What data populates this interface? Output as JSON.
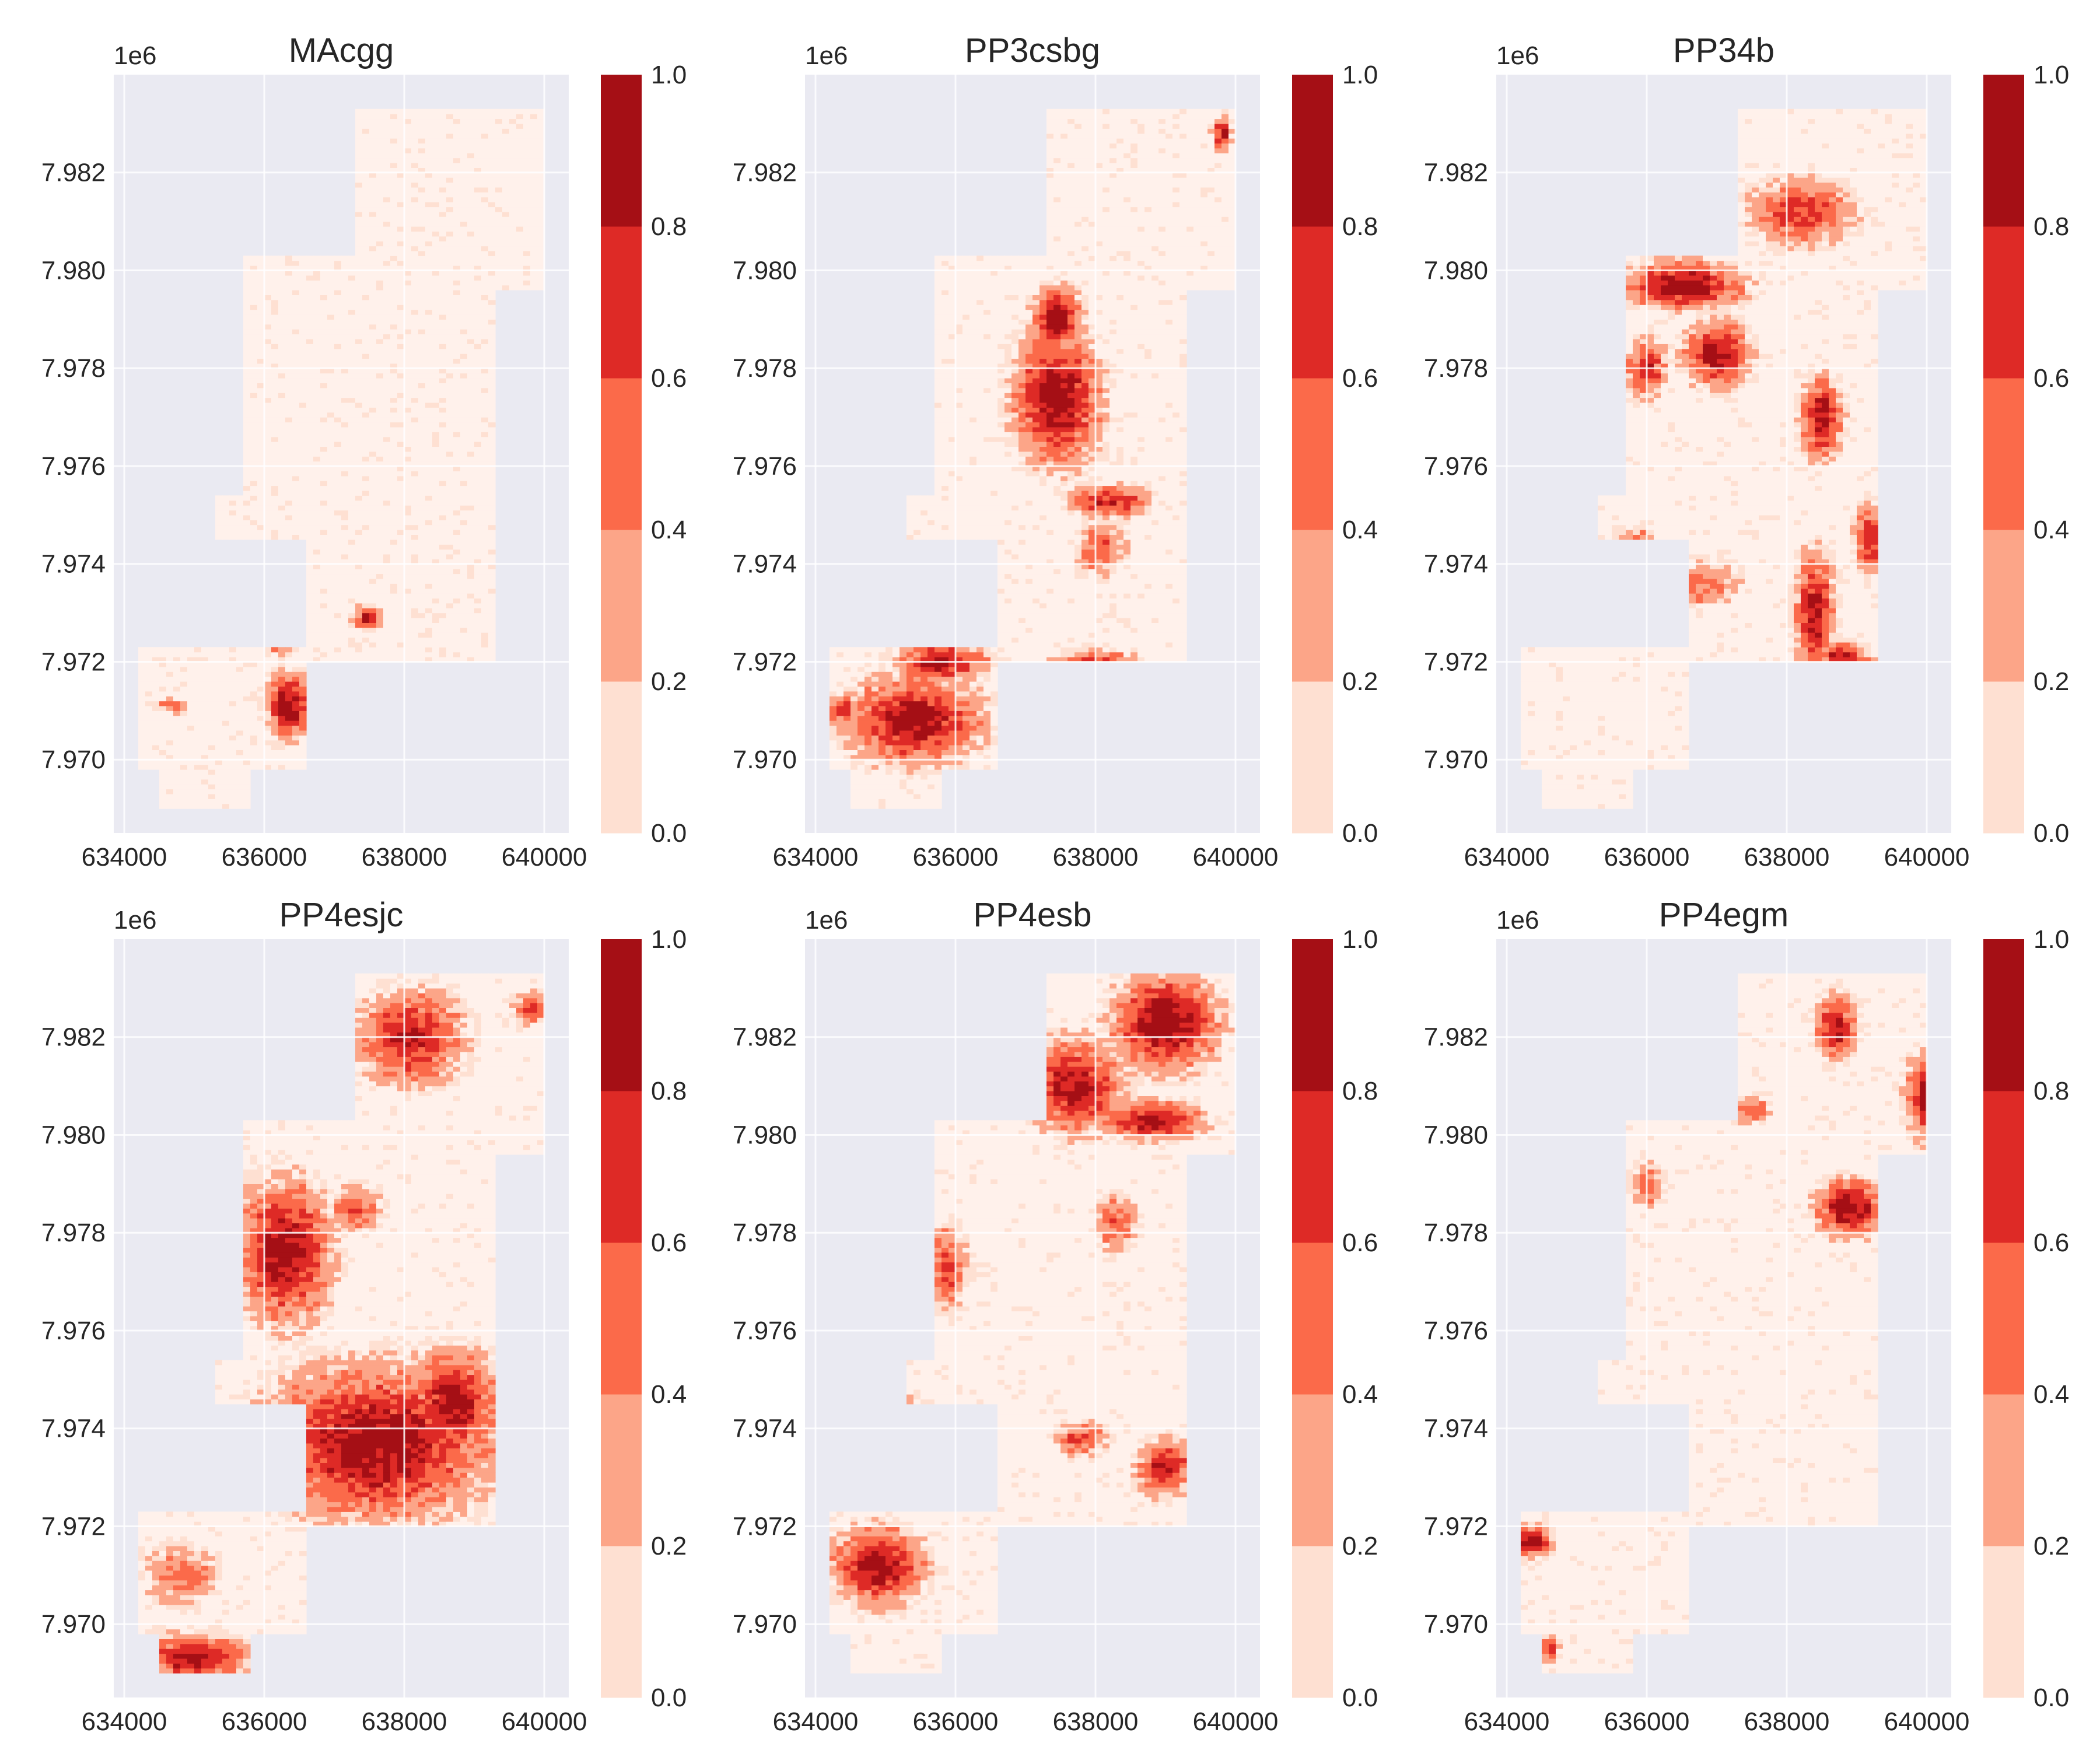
{
  "figure": {
    "background": "#ffffff",
    "axes_background": "#EAEAF2",
    "grid_color": "#ffffff",
    "outside_color": "#EAEAF2"
  },
  "colormap": {
    "name": "Reds",
    "boundaries": [
      0.0,
      0.2,
      0.4,
      0.6,
      0.8,
      1.0
    ],
    "colors": [
      "#FEE0D2",
      "#FCA588",
      "#FB6A4A",
      "#DE2A26",
      "#A50F15"
    ],
    "low_fill": "#FFF1EB",
    "tick_labels": [
      "0.0",
      "0.2",
      "0.4",
      "0.6",
      "0.8",
      "1.0"
    ]
  },
  "chart_data": [
    {
      "type": "heatmap",
      "title": "MAcgg",
      "offset_label": "1e6",
      "xlim": [
        633850,
        640350
      ],
      "ylim": [
        7968500,
        7984000
      ],
      "xticks": [
        634000,
        636000,
        638000,
        640000
      ],
      "xtick_labels": [
        "634000",
        "636000",
        "638000",
        "640000"
      ],
      "yticks": [
        7970000,
        7972000,
        7974000,
        7976000,
        7978000,
        7980000,
        7982000
      ],
      "ytick_labels": [
        "7.970",
        "7.972",
        "7.974",
        "7.976",
        "7.978",
        "7.980",
        "7.982"
      ],
      "colorbar": {
        "range": [
          0.0,
          1.0
        ]
      },
      "hotspots": [
        {
          "x": 636350,
          "y": 7971100,
          "rx": 330,
          "ry": 700,
          "level": 0.95
        },
        {
          "x": 637480,
          "y": 7972900,
          "rx": 200,
          "ry": 260,
          "level": 0.9
        },
        {
          "x": 636900,
          "y": 7971750,
          "rx": 150,
          "ry": 200,
          "level": 0.7
        },
        {
          "x": 634700,
          "y": 7971100,
          "rx": 250,
          "ry": 150,
          "level": 0.6
        },
        {
          "x": 636250,
          "y": 7972300,
          "rx": 250,
          "ry": 200,
          "level": 0.35
        }
      ]
    },
    {
      "type": "heatmap",
      "title": "PP3csbg",
      "offset_label": "1e6",
      "xlim": [
        633850,
        640350
      ],
      "ylim": [
        7968500,
        7984000
      ],
      "xticks": [
        634000,
        636000,
        638000,
        640000
      ],
      "xtick_labels": [
        "634000",
        "636000",
        "638000",
        "640000"
      ],
      "yticks": [
        7970000,
        7972000,
        7974000,
        7976000,
        7978000,
        7980000,
        7982000
      ],
      "ytick_labels": [
        "7.970",
        "7.972",
        "7.974",
        "7.976",
        "7.978",
        "7.980",
        "7.982"
      ],
      "colorbar": {
        "range": [
          0.0,
          1.0
        ]
      },
      "hotspots": [
        {
          "x": 637450,
          "y": 7977400,
          "rx": 650,
          "ry": 1400,
          "level": 0.98
        },
        {
          "x": 637450,
          "y": 7979000,
          "rx": 350,
          "ry": 700,
          "level": 0.95
        },
        {
          "x": 635400,
          "y": 7970800,
          "rx": 1000,
          "ry": 900,
          "level": 0.95
        },
        {
          "x": 635800,
          "y": 7972000,
          "rx": 700,
          "ry": 450,
          "level": 0.85
        },
        {
          "x": 638000,
          "y": 7971900,
          "rx": 600,
          "ry": 350,
          "level": 0.9
        },
        {
          "x": 638200,
          "y": 7975300,
          "rx": 600,
          "ry": 350,
          "level": 0.75
        },
        {
          "x": 638100,
          "y": 7974300,
          "rx": 400,
          "ry": 600,
          "level": 0.5
        },
        {
          "x": 639800,
          "y": 7982800,
          "rx": 150,
          "ry": 350,
          "level": 0.85
        },
        {
          "x": 634400,
          "y": 7971000,
          "rx": 250,
          "ry": 400,
          "level": 0.6
        }
      ]
    },
    {
      "type": "heatmap",
      "title": "PP34b",
      "offset_label": "1e6",
      "xlim": [
        633850,
        640350
      ],
      "ylim": [
        7968500,
        7984000
      ],
      "xticks": [
        634000,
        636000,
        638000,
        640000
      ],
      "xtick_labels": [
        "634000",
        "636000",
        "638000",
        "640000"
      ],
      "yticks": [
        7970000,
        7972000,
        7974000,
        7976000,
        7978000,
        7980000,
        7982000
      ],
      "ytick_labels": [
        "7.970",
        "7.972",
        "7.974",
        "7.976",
        "7.978",
        "7.980",
        "7.982"
      ],
      "colorbar": {
        "range": [
          0.0,
          1.0
        ]
      },
      "hotspots": [
        {
          "x": 636500,
          "y": 7979700,
          "rx": 900,
          "ry": 500,
          "level": 0.98
        },
        {
          "x": 637000,
          "y": 7978300,
          "rx": 500,
          "ry": 700,
          "level": 0.9
        },
        {
          "x": 636000,
          "y": 7978000,
          "rx": 300,
          "ry": 600,
          "level": 0.75
        },
        {
          "x": 638500,
          "y": 7977000,
          "rx": 300,
          "ry": 900,
          "level": 0.9
        },
        {
          "x": 638200,
          "y": 7981200,
          "rx": 800,
          "ry": 700,
          "level": 0.7
        },
        {
          "x": 638400,
          "y": 7973000,
          "rx": 300,
          "ry": 1300,
          "level": 0.85
        },
        {
          "x": 639200,
          "y": 7974500,
          "rx": 250,
          "ry": 700,
          "level": 0.8
        },
        {
          "x": 638800,
          "y": 7972100,
          "rx": 400,
          "ry": 300,
          "level": 0.85
        },
        {
          "x": 636800,
          "y": 7973600,
          "rx": 600,
          "ry": 500,
          "level": 0.5
        },
        {
          "x": 635900,
          "y": 7974500,
          "rx": 300,
          "ry": 300,
          "level": 0.45
        }
      ]
    },
    {
      "type": "heatmap",
      "title": "PP4esjc",
      "offset_label": "1e6",
      "xlim": [
        633850,
        640350
      ],
      "ylim": [
        7968500,
        7984000
      ],
      "xticks": [
        634000,
        636000,
        638000,
        640000
      ],
      "xtick_labels": [
        "634000",
        "636000",
        "638000",
        "640000"
      ],
      "yticks": [
        7970000,
        7972000,
        7974000,
        7976000,
        7978000,
        7980000,
        7982000
      ],
      "ytick_labels": [
        "7.970",
        "7.972",
        "7.974",
        "7.976",
        "7.978",
        "7.980",
        "7.982"
      ],
      "colorbar": {
        "range": [
          0.0,
          1.0
        ]
      },
      "hotspots": [
        {
          "x": 637600,
          "y": 7973700,
          "rx": 1700,
          "ry": 1600,
          "level": 0.95
        },
        {
          "x": 636300,
          "y": 7977600,
          "rx": 700,
          "ry": 1500,
          "level": 0.95
        },
        {
          "x": 638700,
          "y": 7974500,
          "rx": 700,
          "ry": 1100,
          "level": 0.9
        },
        {
          "x": 638100,
          "y": 7982000,
          "rx": 800,
          "ry": 1000,
          "level": 0.8
        },
        {
          "x": 635000,
          "y": 7969300,
          "rx": 800,
          "ry": 500,
          "level": 0.9
        },
        {
          "x": 637300,
          "y": 7978500,
          "rx": 400,
          "ry": 500,
          "level": 0.6
        },
        {
          "x": 634800,
          "y": 7971000,
          "rx": 600,
          "ry": 700,
          "level": 0.45
        },
        {
          "x": 639800,
          "y": 7982600,
          "rx": 250,
          "ry": 400,
          "level": 0.6
        }
      ]
    },
    {
      "type": "heatmap",
      "title": "PP4esb",
      "offset_label": "1e6",
      "xlim": [
        633850,
        640350
      ],
      "ylim": [
        7968500,
        7984000
      ],
      "xticks": [
        634000,
        636000,
        638000,
        640000
      ],
      "xtick_labels": [
        "634000",
        "636000",
        "638000",
        "640000"
      ],
      "yticks": [
        7970000,
        7972000,
        7974000,
        7976000,
        7978000,
        7980000,
        7982000
      ],
      "ytick_labels": [
        "7.970",
        "7.972",
        "7.974",
        "7.976",
        "7.978",
        "7.980",
        "7.982"
      ],
      "colorbar": {
        "range": [
          0.0,
          1.0
        ]
      },
      "hotspots": [
        {
          "x": 639000,
          "y": 7982300,
          "rx": 800,
          "ry": 1000,
          "level": 0.98
        },
        {
          "x": 637700,
          "y": 7981000,
          "rx": 700,
          "ry": 1000,
          "level": 0.9
        },
        {
          "x": 638800,
          "y": 7980300,
          "rx": 800,
          "ry": 400,
          "level": 0.9
        },
        {
          "x": 634900,
          "y": 7971200,
          "rx": 700,
          "ry": 800,
          "level": 0.95
        },
        {
          "x": 635300,
          "y": 7974100,
          "rx": 350,
          "ry": 500,
          "level": 0.9
        },
        {
          "x": 639000,
          "y": 7973200,
          "rx": 400,
          "ry": 600,
          "level": 0.85
        },
        {
          "x": 635900,
          "y": 7977300,
          "rx": 300,
          "ry": 900,
          "level": 0.65
        },
        {
          "x": 637800,
          "y": 7973800,
          "rx": 400,
          "ry": 400,
          "level": 0.6
        },
        {
          "x": 638300,
          "y": 7978200,
          "rx": 300,
          "ry": 600,
          "level": 0.6
        }
      ]
    },
    {
      "type": "heatmap",
      "title": "PP4egm",
      "offset_label": "1e6",
      "xlim": [
        633850,
        640350
      ],
      "ylim": [
        7968500,
        7984000
      ],
      "xticks": [
        634000,
        636000,
        638000,
        640000
      ],
      "xtick_labels": [
        "634000",
        "636000",
        "638000",
        "640000"
      ],
      "yticks": [
        7970000,
        7972000,
        7974000,
        7976000,
        7978000,
        7980000,
        7982000
      ],
      "ytick_labels": [
        "7.970",
        "7.972",
        "7.974",
        "7.976",
        "7.978",
        "7.980",
        "7.982"
      ],
      "colorbar": {
        "range": [
          0.0,
          1.0
        ]
      },
      "hotspots": [
        {
          "x": 638900,
          "y": 7978500,
          "rx": 500,
          "ry": 600,
          "level": 0.98
        },
        {
          "x": 640000,
          "y": 7980800,
          "rx": 300,
          "ry": 900,
          "level": 0.95
        },
        {
          "x": 638700,
          "y": 7982200,
          "rx": 300,
          "ry": 700,
          "level": 0.85
        },
        {
          "x": 634350,
          "y": 7971700,
          "rx": 300,
          "ry": 350,
          "level": 0.95
        },
        {
          "x": 634600,
          "y": 7969500,
          "rx": 150,
          "ry": 250,
          "level": 0.8
        },
        {
          "x": 637500,
          "y": 7980500,
          "rx": 300,
          "ry": 300,
          "level": 0.55
        },
        {
          "x": 636000,
          "y": 7979000,
          "rx": 250,
          "ry": 500,
          "level": 0.55
        }
      ]
    }
  ]
}
